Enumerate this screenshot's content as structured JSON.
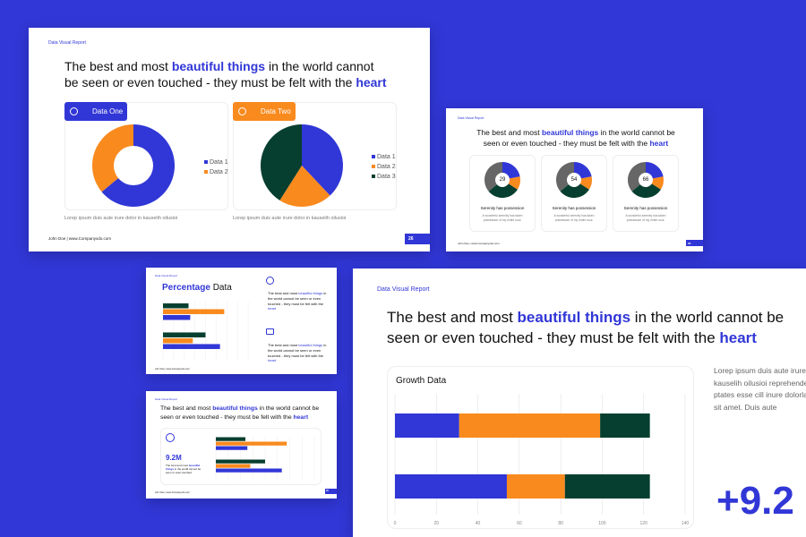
{
  "colors": {
    "blue": "#3137d6",
    "orange": "#f98a1e",
    "green": "#063f2f",
    "gray": "#666666",
    "background": "#3137d6"
  },
  "headline": {
    "part1": "The best and most ",
    "hl1": "beautiful things",
    "part2": " in the world cannot be seen or even touched - they must be felt with the ",
    "hl2": "heart"
  },
  "slide1": {
    "tag": "Data Visual Report",
    "footer": "John Doe | www.Companyxdo.com",
    "page": "26",
    "cards": [
      {
        "title": "Data One",
        "icon": "chart-icon",
        "caption": "Lorep  ipsum duis aute irure dolor in kauselih oilusioi",
        "legend": [
          "Data 1",
          "Data 2"
        ]
      },
      {
        "title": "Data Two",
        "icon": "chart-icon",
        "caption": "Lorep  ipsum duis aute irure dolor in kauselih oilusioi",
        "legend": [
          "Data 1",
          "Data 2",
          "Data 3"
        ]
      }
    ]
  },
  "slide2": {
    "tag": "Data Visual Report",
    "footer": "John Doe | www.Companyxdo.com",
    "page": "26",
    "items": [
      {
        "value": "29",
        "title": "Serenity has possession",
        "text": "A wonderful serenity has taken possession of my entire soul."
      },
      {
        "value": "54",
        "title": "Serenity has possession",
        "text": "A wonderful serenity has taken possession of my entire soul."
      },
      {
        "value": "66",
        "title": "Serenity has possession",
        "text": "A wonderful serenity has taken possession of my entire soul."
      }
    ]
  },
  "slide3": {
    "tag": "Data Visual Report",
    "title_hl": "Percentage",
    "title_rest": " Data",
    "footer": "John Doe | www.Companyxdo.com",
    "notes": [
      {
        "icon": "pie-chart-icon",
        "text1": "The best and most ",
        "hl1": "beautiful things",
        "text2": " in the world cannot be seen or even touched - they must be felt with the ",
        "hl2": "heart"
      },
      {
        "icon": "message-icon",
        "text1": "The best and most ",
        "hl1": "beautiful things",
        "text2": " in the world cannot be seen or even touched - they must be felt with the ",
        "hl2": "heart"
      }
    ]
  },
  "slide4": {
    "tag": "Data Visual Report",
    "page": "26",
    "footer": "John Doe | www.Companyxdo.com",
    "stat": "9.2M",
    "stat_text1": "The best and most ",
    "stat_hl": "beautiful things",
    "stat_text2": " in the world cannot be seen or even touched"
  },
  "slide5": {
    "tag": "Data Visual Report",
    "body": "Lorep  ipsum duis aute irure kauselih oilusioi reprehende ptates esse cill inure dolorla sit amet. Duis aute",
    "big_stat": "+9.2"
  },
  "chart_data": [
    {
      "type": "pie",
      "id": "data-one",
      "variant": "donut",
      "series": [
        {
          "name": "Data 1",
          "values": [
            64
          ]
        },
        {
          "name": "Data 2",
          "values": [
            36
          ]
        }
      ]
    },
    {
      "type": "pie",
      "id": "data-two",
      "series": [
        {
          "name": "Data 1",
          "values": [
            38
          ]
        },
        {
          "name": "Data 2",
          "values": [
            21
          ]
        },
        {
          "name": "Data 3",
          "values": [
            41
          ]
        }
      ]
    },
    {
      "type": "pie",
      "id": "mini-donuts",
      "variant": "donut",
      "slices": [
        [
          22,
          12,
          30,
          36
        ],
        [
          22,
          12,
          30,
          36
        ],
        [
          22,
          12,
          30,
          36
        ]
      ]
    },
    {
      "type": "bar",
      "id": "percentage-data",
      "orientation": "horizontal",
      "groups": [
        [
          30,
          72,
          32
        ],
        [
          50,
          35,
          67
        ]
      ],
      "xlim": [
        0,
        100
      ]
    },
    {
      "type": "bar",
      "id": "slide4-bars",
      "orientation": "horizontal",
      "groups": [
        [
          30,
          72,
          32
        ],
        [
          50,
          35,
          67
        ]
      ],
      "xlim": [
        0,
        100
      ]
    },
    {
      "type": "bar",
      "id": "growth-data",
      "title": "Growth Data",
      "orientation": "horizontal",
      "stacked": true,
      "series": [
        {
          "values": [
            31,
            54
          ]
        },
        {
          "values": [
            68,
            28
          ]
        },
        {
          "values": [
            24,
            41
          ]
        }
      ],
      "xlim": [
        0,
        140
      ],
      "xticks": [
        "0",
        "20",
        "40",
        "60",
        "80",
        "100",
        "120",
        "140"
      ],
      "grid": true
    }
  ]
}
